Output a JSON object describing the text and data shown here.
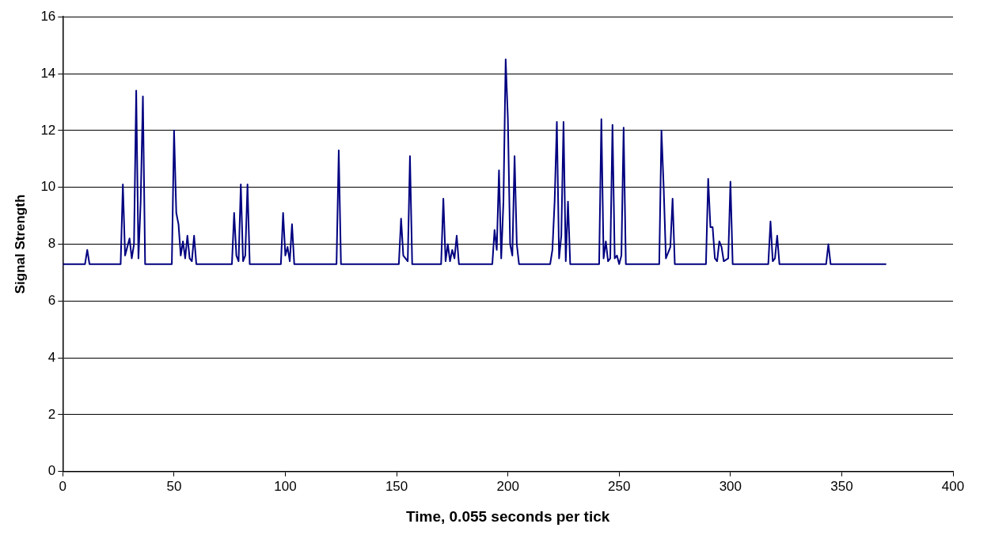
{
  "chart_data": {
    "type": "line",
    "xlabel": "Time, 0.055 seconds per tick",
    "ylabel": "Signal Strength",
    "series": [
      {
        "color": "#000080",
        "x": [
          0,
          10,
          11,
          12,
          26,
          27,
          28,
          29,
          30,
          31,
          32,
          33,
          34,
          35,
          36,
          37,
          49,
          50,
          51,
          52,
          53,
          54,
          55,
          56,
          57,
          58,
          59,
          60,
          76,
          77,
          78,
          79,
          80,
          81,
          82,
          83,
          84,
          98,
          99,
          100,
          101,
          102,
          103,
          104,
          123,
          124,
          125,
          151,
          152,
          153,
          155,
          156,
          157,
          170,
          171,
          172,
          173,
          174,
          175,
          176,
          177,
          178,
          193,
          194,
          195,
          196,
          197,
          198,
          199,
          200,
          201,
          202,
          203,
          204,
          205,
          219,
          220,
          221,
          222,
          223,
          224,
          225,
          226,
          227,
          228,
          241,
          242,
          243,
          244,
          245,
          246,
          247,
          248,
          249,
          250,
          251,
          252,
          253,
          268,
          269,
          270,
          271,
          273,
          274,
          275,
          289,
          290,
          291,
          292,
          293,
          294,
          295,
          296,
          297,
          299,
          300,
          301,
          317,
          318,
          319,
          320,
          321,
          322,
          343,
          344,
          345,
          370
        ],
        "values": [
          7.3,
          7.3,
          7.8,
          7.3,
          7.3,
          10.1,
          7.6,
          7.9,
          8.2,
          7.5,
          8.0,
          13.4,
          7.5,
          9.5,
          13.2,
          7.3,
          7.3,
          12.0,
          9.1,
          8.7,
          7.6,
          8.1,
          7.5,
          8.3,
          7.5,
          7.4,
          8.3,
          7.3,
          7.3,
          9.1,
          7.6,
          7.4,
          10.1,
          7.4,
          7.6,
          10.1,
          7.3,
          7.3,
          9.1,
          7.6,
          7.9,
          7.4,
          8.7,
          7.3,
          7.3,
          11.3,
          7.3,
          7.3,
          8.9,
          7.6,
          7.4,
          11.1,
          7.3,
          7.3,
          9.6,
          7.4,
          8.0,
          7.4,
          7.8,
          7.5,
          8.3,
          7.3,
          7.3,
          8.5,
          7.8,
          10.6,
          7.5,
          9.5,
          14.5,
          12.4,
          8.0,
          7.6,
          11.1,
          8.0,
          7.3,
          7.3,
          7.8,
          9.5,
          12.3,
          7.5,
          8.3,
          12.3,
          7.4,
          9.5,
          7.3,
          7.3,
          12.4,
          7.5,
          8.1,
          7.4,
          7.5,
          12.2,
          7.5,
          7.6,
          7.3,
          7.6,
          12.1,
          7.3,
          7.3,
          12.0,
          10.0,
          7.5,
          7.9,
          9.6,
          7.3,
          7.3,
          10.3,
          8.6,
          8.6,
          7.5,
          7.4,
          8.1,
          7.9,
          7.4,
          7.5,
          10.2,
          7.3,
          7.3,
          8.8,
          7.4,
          7.5,
          8.3,
          7.3,
          7.3,
          8.0,
          7.3,
          7.3
        ]
      }
    ],
    "xlim": [
      0,
      400
    ],
    "xticks": [
      0,
      50,
      100,
      150,
      200,
      250,
      300,
      350,
      400
    ],
    "ylim": [
      0,
      16
    ],
    "yticks": [
      0,
      2,
      4,
      6,
      8,
      10,
      12,
      14,
      16
    ],
    "grid": "y",
    "legend": false,
    "marker": "none",
    "line_style": "solid"
  }
}
